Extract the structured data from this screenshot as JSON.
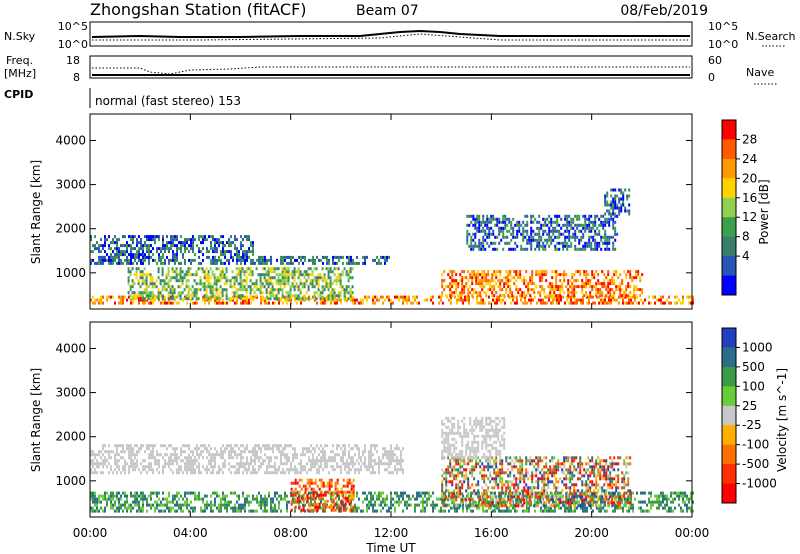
{
  "header": {
    "station": "Zhongshan Station (fitACF)",
    "beam": "Beam 07",
    "date": "08/Feb/2019"
  },
  "panel_nsky": {
    "left_label": "N.Sky",
    "right_label": "N.Search",
    "left_ticks": [
      "10^5",
      "10^0"
    ],
    "right_ticks": [
      "10^5",
      "10^0"
    ]
  },
  "panel_freq": {
    "left_label_top": "Freq.",
    "left_label_bottom": "[MHz]",
    "right_label": "Nave",
    "left_ticks": [
      "18",
      "8"
    ],
    "right_ticks": [
      "60",
      "0"
    ]
  },
  "panel_cpid": {
    "label": "CPID",
    "text": "normal (fast stereo) 153"
  },
  "power_panel": {
    "ylabel": "Slant Range [km]",
    "colorbar_label": "Power [dB]",
    "colorbar_ticks": [
      "28",
      "24",
      "20",
      "16",
      "12",
      "8",
      "4"
    ]
  },
  "velocity_panel": {
    "ylabel": "Slant Range [km]",
    "colorbar_label": "Velocity [m s^-1]",
    "colorbar_ticks": [
      "1000",
      "500",
      "100",
      "25",
      "-25",
      "-100",
      "-500",
      "-1000"
    ]
  },
  "xaxis": {
    "ticks": [
      "00:00",
      "04:00",
      "08:00",
      "12:00",
      "16:00",
      "20:00",
      "00:00"
    ],
    "label": "Time UT"
  },
  "chart_data": [
    {
      "type": "heatmap",
      "name": "power",
      "ylabel": "Slant Range [km]",
      "xlabel": "Time UT",
      "x_range_hours": [
        0,
        24
      ],
      "y_range_km": [
        180,
        4600
      ],
      "y_ticks": [
        1000,
        2000,
        3000,
        4000
      ],
      "x_ticks": [
        "00:00",
        "04:00",
        "08:00",
        "12:00",
        "16:00",
        "20:00",
        "00:00"
      ],
      "colorbar": {
        "label": "Power [dB]",
        "ticks": [
          28,
          24,
          20,
          16,
          12,
          8,
          4
        ],
        "colors": [
          "#ff0000",
          "#ff5a00",
          "#ff9a00",
          "#ffd200",
          "#92d050",
          "#3aa04a",
          "#3a7d6a",
          "#2856b4",
          "#0000ff"
        ]
      },
      "echo_regions": [
        {
          "t": [
            0.0,
            24.0
          ],
          "r": [
            280,
            420
          ],
          "level": "high"
        },
        {
          "t": [
            0.0,
            6.5
          ],
          "r": [
            1380,
            1800
          ],
          "level": "low"
        },
        {
          "t": [
            0.0,
            12.0
          ],
          "r": [
            1180,
            1320
          ],
          "level": "low"
        },
        {
          "t": [
            1.5,
            10.5
          ],
          "r": [
            380,
            1100
          ],
          "level": "mid"
        },
        {
          "t": [
            14.0,
            22.0
          ],
          "r": [
            450,
            1000
          ],
          "level": "high"
        },
        {
          "t": [
            15.0,
            21.0
          ],
          "r": [
            1500,
            2300
          ],
          "level": "low"
        },
        {
          "t": [
            20.5,
            21.5
          ],
          "r": [
            2300,
            2900
          ],
          "level": "low"
        }
      ]
    },
    {
      "type": "heatmap",
      "name": "velocity",
      "ylabel": "Slant Range [km]",
      "xlabel": "Time UT",
      "x_range_hours": [
        0,
        24
      ],
      "y_range_km": [
        180,
        4600
      ],
      "y_ticks": [
        1000,
        2000,
        3000,
        4000
      ],
      "x_ticks": [
        "00:00",
        "04:00",
        "08:00",
        "12:00",
        "16:00",
        "20:00",
        "00:00"
      ],
      "colorbar": {
        "label": "Velocity [m s^-1]",
        "ticks": [
          1000,
          500,
          100,
          25,
          -25,
          -100,
          -500,
          -1000
        ],
        "colors": [
          "#2040c0",
          "#2a6e8a",
          "#3a9a4a",
          "#6acc3a",
          "#c8c8c8",
          "#ffb000",
          "#ff7000",
          "#ff3000",
          "#ff0000"
        ]
      },
      "echo_regions": [
        {
          "t": [
            0.0,
            12.5
          ],
          "r": [
            1150,
            1800
          ],
          "level": "ground"
        },
        {
          "t": [
            0.0,
            24.0
          ],
          "r": [
            280,
            700
          ],
          "level": "positive"
        },
        {
          "t": [
            8.0,
            10.5
          ],
          "r": [
            300,
            1000
          ],
          "level": "negative"
        },
        {
          "t": [
            14.0,
            21.5
          ],
          "r": [
            400,
            1500
          ],
          "level": "mixed"
        },
        {
          "t": [
            14.0,
            16.5
          ],
          "r": [
            1500,
            2400
          ],
          "level": "ground"
        }
      ]
    }
  ]
}
